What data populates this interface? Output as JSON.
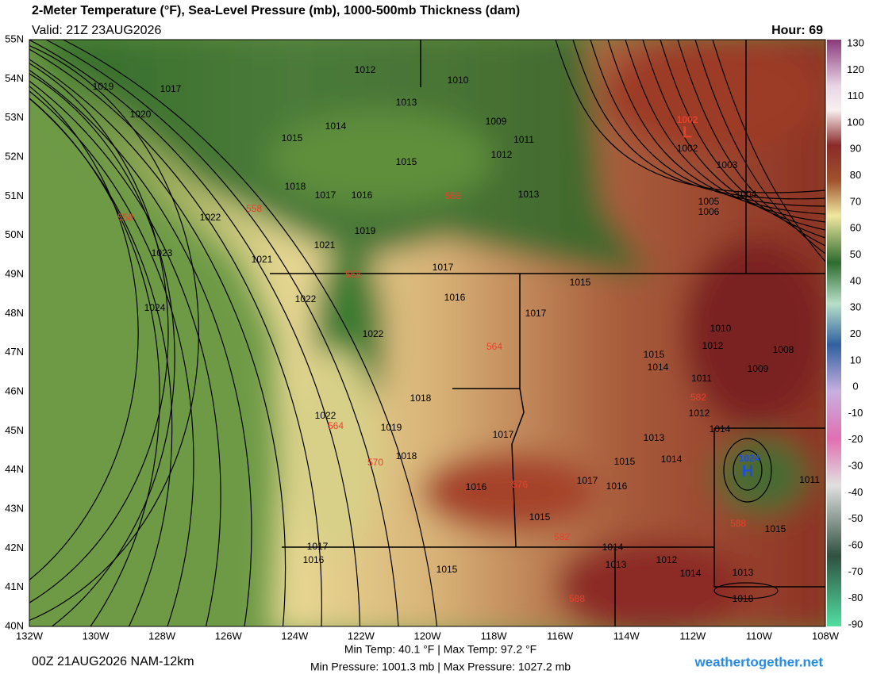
{
  "header": {
    "title": "2-Meter Temperature (°F), Sea-Level Pressure (mb), 1000-500mb Thickness (dam)",
    "valid": "Valid: 21Z 23AUG2026",
    "hour": "Hour: 69"
  },
  "axes": {
    "lat_labels": [
      "55N",
      "54N",
      "53N",
      "52N",
      "51N",
      "50N",
      "49N",
      "48N",
      "47N",
      "46N",
      "45N",
      "44N",
      "43N",
      "42N",
      "41N",
      "40N"
    ],
    "lon_labels": [
      "132W",
      "130W",
      "128W",
      "126W",
      "124W",
      "122W",
      "120W",
      "118W",
      "116W",
      "114W",
      "112W",
      "110W",
      "108W"
    ]
  },
  "colorbar": {
    "labels": [
      "130",
      "120",
      "110",
      "100",
      "90",
      "80",
      "70",
      "60",
      "50",
      "40",
      "30",
      "20",
      "10",
      "0",
      "-10",
      "-20",
      "-30",
      "-40",
      "-50",
      "-60",
      "-70",
      "-80",
      "-90"
    ]
  },
  "map": {
    "isobar_labels": [
      "1012",
      "1010",
      "1013",
      "1014",
      "1015",
      "1009",
      "1011",
      "1012",
      "1015",
      "1013",
      "1018",
      "1017",
      "1016",
      "1019",
      "1022",
      "1021",
      "1021",
      "1023",
      "1017",
      "1024",
      "1022",
      "1016",
      "1015",
      "1017",
      "1022",
      "1018",
      "1022",
      "1019",
      "1017",
      "1018",
      "1016",
      "1017",
      "1016",
      "1015",
      "1014",
      "1013",
      "1012",
      "1014",
      "1015",
      "1014",
      "1013",
      "1012",
      "1014",
      "1013",
      "1018",
      "1015",
      "1011",
      "1017",
      "1016",
      "1015",
      "1015",
      "1014",
      "1011",
      "1012",
      "1010",
      "1009",
      "1008",
      "1002",
      "1003",
      "1004",
      "1005",
      "1006",
      "1020",
      "1019",
      "1017"
    ],
    "thickness_labels": [
      "558",
      "558",
      "558",
      "558",
      "564",
      "564",
      "570",
      "576",
      "582",
      "582",
      "588",
      "588"
    ],
    "low": {
      "symbol": "L",
      "value": "1002"
    },
    "high": {
      "symbol": "H",
      "value": "1024"
    }
  },
  "footer": {
    "run": "00Z 21AUG2026 NAM-12km",
    "temps": "Min Temp:  40.1 °F | Max Temp:  97.2 °F",
    "pressures": "Min Pressure: 1001.3 mb | Max Pressure: 1027.2 mb",
    "site": "weathertogether.net"
  }
}
